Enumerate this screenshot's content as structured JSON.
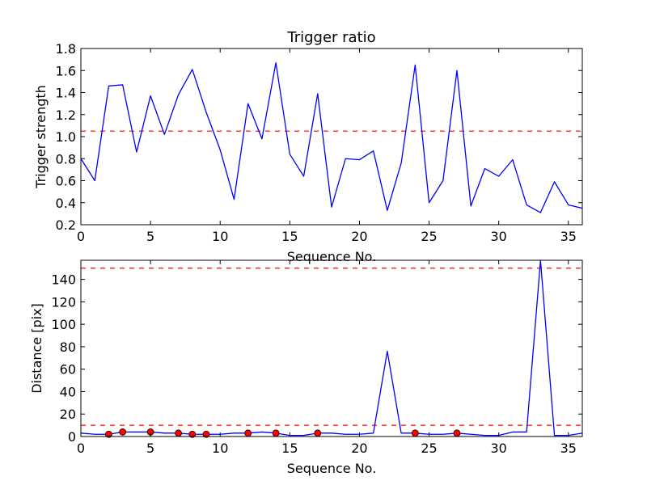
{
  "chart_data": [
    {
      "type": "line",
      "title": "Trigger ratio",
      "xlabel": "Sequence No.",
      "ylabel": "Trigger strength",
      "xlim": [
        0,
        36
      ],
      "ylim": [
        0.2,
        1.8
      ],
      "xticks": [
        0,
        5,
        10,
        15,
        20,
        25,
        30,
        35
      ],
      "yticks": [
        0.2,
        0.4,
        0.6,
        0.8,
        1.0,
        1.2,
        1.4,
        1.6,
        1.8
      ],
      "ytick_format": 1,
      "grid": false,
      "series": [
        {
          "color": "#0000ff",
          "x": [
            0,
            1,
            2,
            3,
            4,
            5,
            6,
            7,
            8,
            9,
            10,
            11,
            12,
            13,
            14,
            15,
            16,
            17,
            18,
            19,
            20,
            21,
            22,
            23,
            24,
            25,
            26,
            27,
            28,
            29,
            30,
            31,
            32,
            33,
            34,
            35,
            36
          ],
          "y": [
            0.8,
            0.6,
            1.46,
            1.47,
            0.86,
            1.37,
            1.02,
            1.38,
            1.61,
            1.22,
            0.88,
            0.43,
            1.3,
            0.98,
            1.67,
            0.84,
            0.64,
            1.39,
            0.36,
            0.8,
            0.79,
            0.87,
            0.33,
            0.76,
            1.65,
            0.4,
            0.6,
            1.6,
            0.37,
            0.71,
            0.64,
            0.79,
            0.38,
            0.31,
            0.59,
            0.38,
            0.35
          ]
        }
      ],
      "hlines": [
        {
          "y": 1.05,
          "color": "#ff0000",
          "style": "dashed"
        }
      ]
    },
    {
      "type": "line",
      "title": "",
      "xlabel": "Sequence No.",
      "ylabel": "Distance [pix]",
      "xlim": [
        0,
        36
      ],
      "ylim": [
        0,
        157
      ],
      "xticks": [
        0,
        5,
        10,
        15,
        20,
        25,
        30,
        35
      ],
      "yticks": [
        0,
        20,
        40,
        60,
        80,
        100,
        120,
        140
      ],
      "ytick_format": 0,
      "grid": false,
      "series": [
        {
          "color": "#0000ff",
          "x": [
            0,
            1,
            2,
            3,
            4,
            5,
            6,
            7,
            8,
            9,
            10,
            11,
            12,
            13,
            14,
            15,
            16,
            17,
            18,
            19,
            20,
            21,
            22,
            23,
            24,
            25,
            26,
            27,
            28,
            29,
            30,
            31,
            32,
            33,
            34,
            35,
            36
          ],
          "y": [
            3,
            2,
            2,
            4,
            4,
            4,
            3,
            3,
            2,
            2,
            2,
            3,
            3,
            4,
            3,
            1,
            1,
            3,
            3,
            2,
            2,
            3,
            76,
            3,
            3,
            2,
            2,
            3,
            2,
            1,
            1,
            4,
            4,
            157,
            1,
            1,
            3
          ]
        }
      ],
      "markers": {
        "color": "#ff0000",
        "x": [
          2,
          3,
          5,
          7,
          8,
          9,
          12,
          14,
          17,
          24,
          27
        ],
        "y": [
          2,
          4,
          4,
          3,
          2,
          2,
          3,
          3,
          3,
          3,
          3
        ]
      },
      "hlines": [
        {
          "y": 150,
          "color": "#ff0000",
          "style": "dashed"
        },
        {
          "y": 10,
          "color": "#ff0000",
          "style": "dashed"
        }
      ]
    }
  ]
}
